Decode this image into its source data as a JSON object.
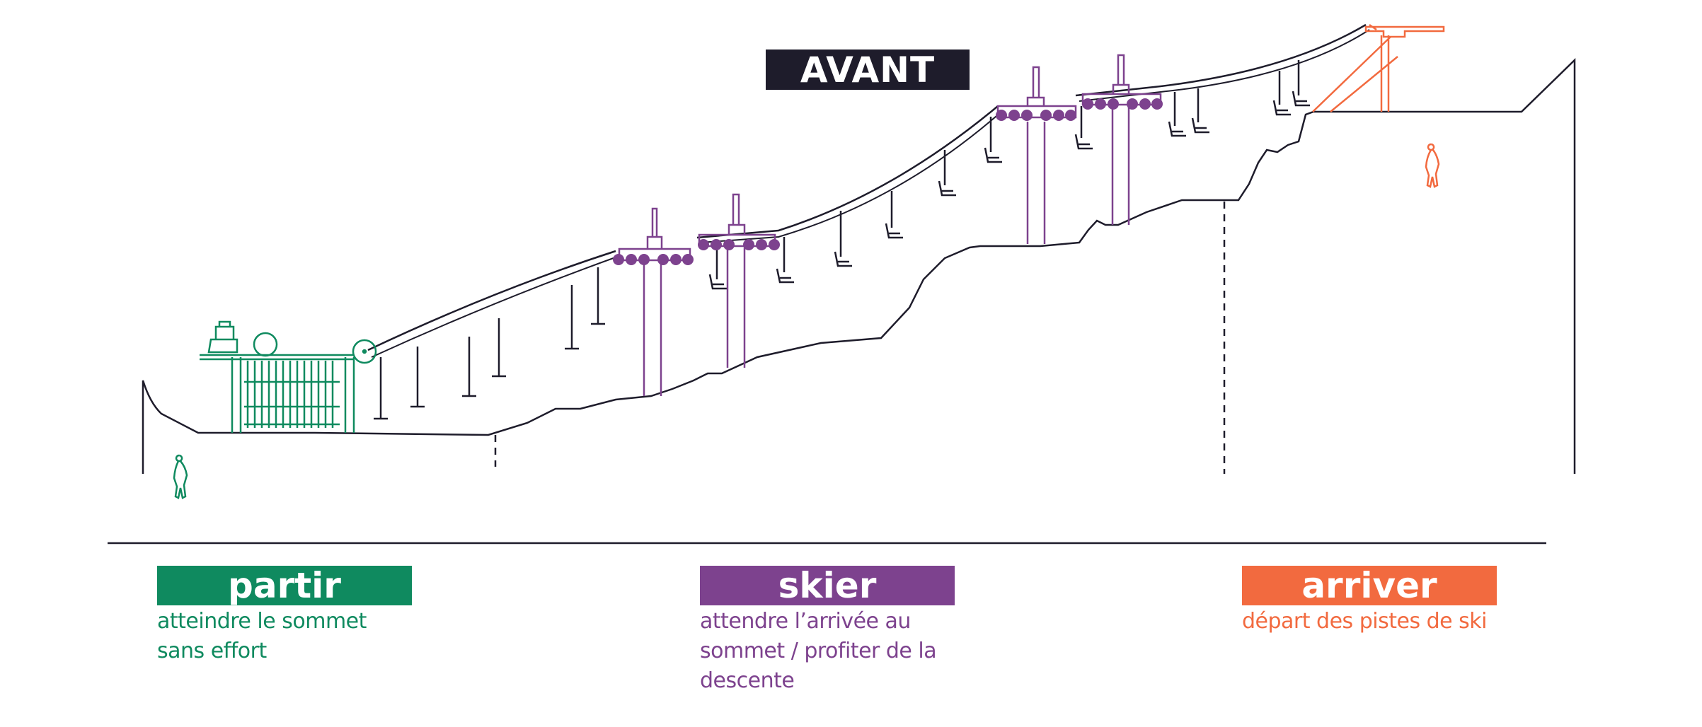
{
  "title": "AVANT",
  "phases": [
    {
      "label": "partir",
      "description": "atteindre le sommet sans effort",
      "color": "#0f8a5f"
    },
    {
      "label": "skier",
      "description": "attendre l’arrivée au sommet / profiter de la descente",
      "color": "#7d428e"
    },
    {
      "label": "arriver",
      "description": "départ des pistes de ski",
      "color": "#f26a3f"
    }
  ],
  "colors": {
    "ink": "#1e1c2b",
    "green": "#0f8a5f",
    "purple": "#7d428e",
    "orange": "#f26a3f"
  },
  "icons": [
    "skier-figure-icon",
    "chairlift-chair-icon",
    "t-bar-icon",
    "cable-wheel-icon"
  ]
}
